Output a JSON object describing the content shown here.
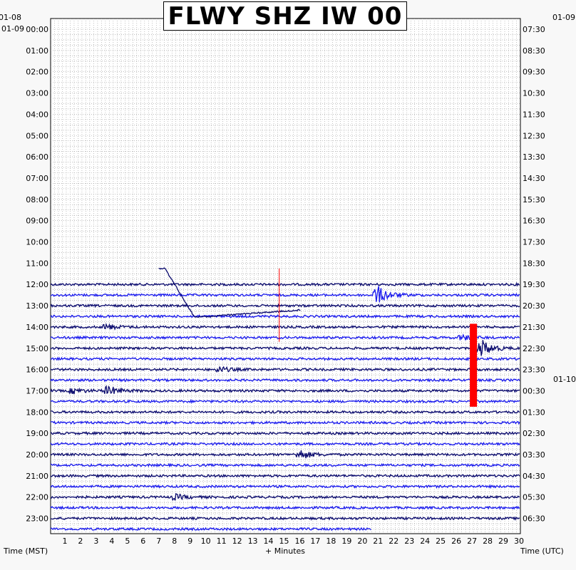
{
  "title": "FLWY SHZ IW 00",
  "date_labels": {
    "left_top": "01-08",
    "left_start": "01-09",
    "right_top": "01-09",
    "right_mid": "01-10"
  },
  "colors": {
    "trace_dark": "#0a0a6e",
    "trace_blue": "#1a1aee",
    "marker_red": "#ff0000",
    "grid": "#9a9a9a",
    "background": "#ffffff",
    "page": "#f8f8f8"
  },
  "chart_data": {
    "type": "helicorder",
    "title": "FLWY SHZ IW 00",
    "xlabel": "+ Minutes",
    "ylabel_left": "Time (MST)",
    "ylabel_right": "Time (UTC)",
    "xlim": [
      0,
      30
    ],
    "x_ticks": [
      1,
      2,
      3,
      4,
      5,
      6,
      7,
      8,
      9,
      10,
      11,
      12,
      13,
      14,
      15,
      16,
      17,
      18,
      19,
      20,
      21,
      22,
      23,
      24,
      25,
      26,
      27,
      28,
      29,
      30
    ],
    "left_time_labels": [
      "00:00",
      "01:00",
      "02:00",
      "03:00",
      "04:00",
      "05:00",
      "06:00",
      "07:00",
      "08:00",
      "09:00",
      "10:00",
      "11:00",
      "12:00",
      "13:00",
      "14:00",
      "15:00",
      "16:00",
      "17:00",
      "18:00",
      "19:00",
      "20:00",
      "21:00",
      "22:00",
      "23:00"
    ],
    "right_time_labels": [
      "07:30",
      "08:30",
      "09:30",
      "10:30",
      "11:30",
      "12:30",
      "13:30",
      "14:30",
      "15:30",
      "16:30",
      "17:30",
      "18:30",
      "19:30",
      "20:30",
      "21:30",
      "22:30",
      "23:30",
      "00:30",
      "01:30",
      "02:30",
      "03:30",
      "04:30",
      "05:30",
      "06:30"
    ],
    "rows_per_hour": 2,
    "first_data_row_hours": 12.0,
    "last_data_row_end_minute": 20.5,
    "events": [
      {
        "hour": 12.5,
        "minute": 20.9,
        "amplitude": "large"
      },
      {
        "hour": 14.0,
        "minute": 3.6,
        "amplitude": "small"
      },
      {
        "hour": 14.5,
        "minute": 26.3,
        "amplitude": "small"
      },
      {
        "hour": 15.0,
        "minute": 27.5,
        "amplitude": "large"
      },
      {
        "hour": 16.0,
        "minute": 10.8,
        "amplitude": "small"
      },
      {
        "hour": 17.0,
        "minute": 3.7,
        "amplitude": "medium"
      },
      {
        "hour": 17.0,
        "minute": 1.5,
        "amplitude": "small"
      },
      {
        "hour": 20.0,
        "minute": 16.0,
        "amplitude": "medium"
      },
      {
        "hour": 22.0,
        "minute": 8.0,
        "amplitude": "small"
      }
    ],
    "markers": [
      {
        "type": "red-bar",
        "minute": 27.0,
        "from_hour": 13.85,
        "to_hour": 17.75
      },
      {
        "type": "red-line",
        "minute": 14.6,
        "from_hour": 11.25,
        "to_hour": 14.7
      }
    ]
  }
}
